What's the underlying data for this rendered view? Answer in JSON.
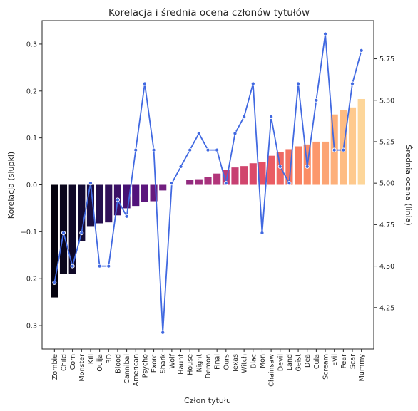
{
  "chart_data": {
    "type": "bar+line",
    "title": "Korelacja i średnia ocena członów tytułów",
    "xlabel": "Człon tytułu",
    "ylabel_left": "Korelacja (słupki)",
    "ylabel_right": "Średnia ocena (linia)",
    "ylim_left": [
      -0.35,
      0.35
    ],
    "ylim_right": [
      4.0,
      5.98
    ],
    "yticks_left": [
      "0.3",
      "0.2",
      "0.1",
      "0.0",
      "−0.1",
      "−0.2",
      "−0.3"
    ],
    "yticks_left_values": [
      0.3,
      0.2,
      0.1,
      0.0,
      -0.1,
      -0.2,
      -0.3
    ],
    "yticks_right": [
      "5.75",
      "5.50",
      "5.25",
      "5.00",
      "4.75",
      "4.50",
      "4.25"
    ],
    "yticks_right_values": [
      5.75,
      5.5,
      5.25,
      5.0,
      4.75,
      4.5,
      4.25
    ],
    "categories": [
      "Zombie",
      "Child",
      "Corn",
      "Monster",
      "Kill",
      "Ouija",
      "3D",
      "Blood",
      "Cannibal",
      "American",
      "Psycho",
      "Exorc",
      "Shark",
      "Wolf",
      "Haunt",
      "House",
      "Night",
      "Demon",
      "Final",
      "Ours",
      "Texas",
      "Witch",
      "Blac",
      "Mon",
      "Chainsaw",
      "Devil",
      "Land",
      "Geist",
      "Dea",
      "Cula",
      "Scream",
      "Evil",
      "Fear",
      "Scar",
      "Mummy"
    ],
    "series": [
      {
        "values": [
          -0.24,
          -0.19,
          -0.19,
          -0.12,
          -0.088,
          -0.082,
          -0.08,
          -0.065,
          -0.05,
          -0.045,
          -0.036,
          -0.035,
          -0.012,
          0.0,
          0.0,
          0.01,
          0.012,
          0.017,
          0.024,
          0.032,
          0.037,
          0.04,
          0.046,
          0.048,
          0.062,
          0.07,
          0.076,
          0.082,
          0.086,
          0.092,
          0.092,
          0.15,
          0.16,
          0.165,
          0.183
        ]
      },
      {
        "values": [
          4.4,
          4.7,
          4.5,
          4.7,
          5.0,
          4.5,
          4.5,
          4.9,
          4.8,
          5.2,
          5.6,
          5.2,
          4.1,
          5.0,
          5.1,
          5.2,
          5.3,
          5.2,
          5.2,
          5.0,
          5.3,
          5.4,
          5.6,
          4.7,
          5.4,
          5.1,
          5.0,
          5.6,
          5.1,
          5.5,
          5.9,
          5.2,
          5.2,
          5.6,
          5.8
        ]
      }
    ],
    "line_color": "#4169e1",
    "colormap": "magma",
    "grid": false,
    "legend": "none"
  }
}
